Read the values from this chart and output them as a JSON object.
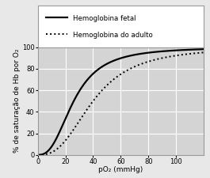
{
  "xlabel": "pO₂ (mmHg)",
  "ylabel": "% de saturação de Hb por O₂",
  "xlim": [
    0,
    120
  ],
  "ylim": [
    0,
    100
  ],
  "xticks": [
    0,
    20,
    40,
    60,
    80,
    100
  ],
  "yticks": [
    0,
    20,
    40,
    60,
    80,
    100
  ],
  "fetal_label": "Hemoglobina fetal",
  "adult_label": "Hemoglobina do adulto",
  "fetal_color": "#000000",
  "adult_color": "#000000",
  "fetal_linestyle": "solid",
  "adult_linestyle": "dotted",
  "fetal_hill_n": 2.6,
  "fetal_p50": 26,
  "adult_hill_n": 2.7,
  "adult_p50": 40,
  "plot_bg_color": "#d4d4d4",
  "figure_bg_color": "#e8e8e8",
  "legend_bg_color": "#ffffff",
  "grid_color": "#ffffff",
  "border_color": "#999999",
  "linewidth": 1.6,
  "legend_fontsize": 6.2,
  "axis_fontsize": 6.5,
  "tick_fontsize": 6.0,
  "adult_linewidth": 1.4
}
